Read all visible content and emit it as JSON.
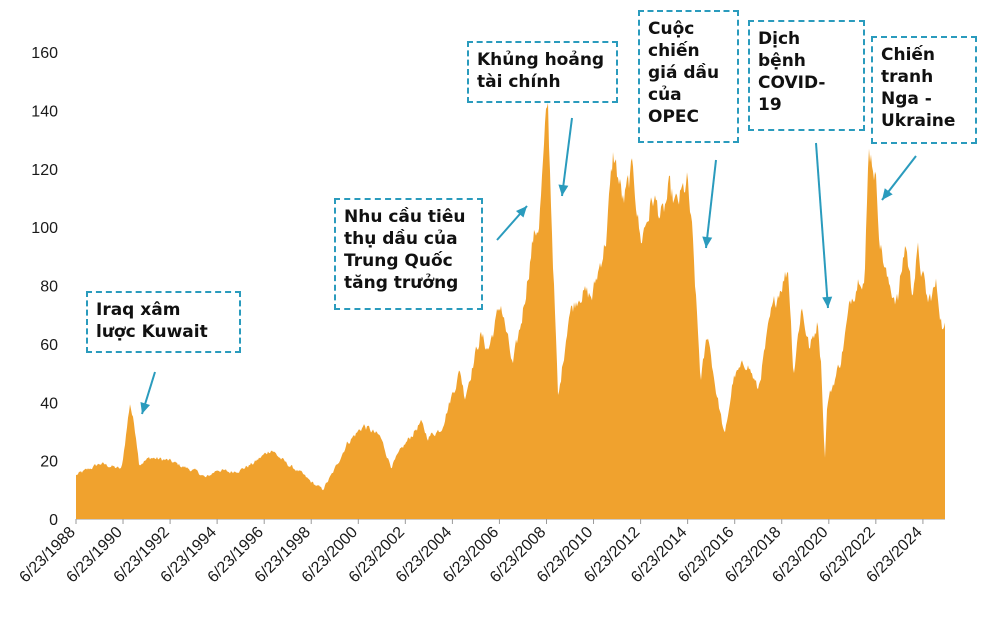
{
  "chart_data": {
    "type": "area",
    "title": "",
    "xlabel": "",
    "ylabel": "",
    "ylim": [
      0,
      160
    ],
    "yticks": [
      0,
      20,
      40,
      60,
      80,
      100,
      120,
      140,
      160
    ],
    "xlim": [
      "1988-06-23",
      "2025-06-01"
    ],
    "xticks": [
      "6/23/1988",
      "6/23/1990",
      "6/23/1992",
      "6/23/1994",
      "6/23/1996",
      "6/23/1998",
      "6/23/2000",
      "6/23/2002",
      "6/23/2004",
      "6/23/2006",
      "6/23/2008",
      "6/23/2010",
      "6/23/2012",
      "6/23/2014",
      "6/23/2016",
      "6/23/2018",
      "6/23/2020",
      "6/23/2022",
      "6/23/2024"
    ],
    "fill_color": "#f0a22e",
    "series": [
      {
        "x": [
          "1988-06-23",
          "1989-01-01",
          "1989-07-01",
          "1990-01-01",
          "1990-06-01",
          "1990-08-15",
          "1990-10-10",
          "1991-01-15",
          "1991-03-01",
          "1991-09-01",
          "1992-06-01",
          "1993-01-01",
          "1993-09-01",
          "1994-01-01",
          "1994-07-01",
          "1995-01-01",
          "1995-07-01",
          "1996-01-01",
          "1996-10-15",
          "1997-01-01",
          "1997-06-01",
          "1998-01-01",
          "1998-06-01",
          "1998-12-15",
          "1999-06-01",
          "2000-01-01",
          "2000-09-15",
          "2001-06-01",
          "2001-11-15",
          "2002-06-01",
          "2003-02-15",
          "2003-06-01",
          "2004-01-01",
          "2004-10-20",
          "2005-01-01",
          "2005-08-30",
          "2006-01-01",
          "2006-07-15",
          "2007-01-15",
          "2007-06-01",
          "2007-11-20",
          "2008-03-01",
          "2008-07-11",
          "2008-09-15",
          "2008-12-21",
          "2009-06-01",
          "2009-12-01",
          "2010-06-01",
          "2011-01-01",
          "2011-04-28",
          "2011-10-01",
          "2012-03-01",
          "2012-06-21",
          "2013-01-01",
          "2013-06-01",
          "2013-09-01",
          "2014-01-01",
          "2014-06-20",
          "2014-09-01",
          "2015-01-13",
          "2015-05-01",
          "2015-09-01",
          "2016-01-20",
          "2016-06-01",
          "2017-01-01",
          "2017-06-20",
          "2018-01-01",
          "2018-05-15",
          "2018-10-03",
          "2018-12-24",
          "2019-04-25",
          "2019-09-01",
          "2020-01-06",
          "2020-03-01",
          "2020-04-21",
          "2020-06-01",
          "2021-01-01",
          "2021-06-01",
          "2021-10-25",
          "2022-01-01",
          "2022-03-08",
          "2022-06-08",
          "2022-09-01",
          "2023-01-01",
          "2023-06-01",
          "2023-09-27",
          "2024-01-01",
          "2024-04-05",
          "2024-09-10",
          "2025-01-15",
          "2025-05-01"
        ],
        "y": [
          15,
          17,
          19,
          18,
          17,
          30,
          40,
          28,
          19,
          21,
          20,
          18,
          16,
          14,
          17,
          16,
          17,
          19,
          24,
          22,
          19,
          16,
          13,
          10,
          16,
          26,
          32,
          28,
          18,
          25,
          33,
          28,
          31,
          51,
          42,
          63,
          58,
          74,
          52,
          68,
          95,
          102,
          143,
          100,
          40,
          70,
          78,
          76,
          96,
          125,
          108,
          120,
          95,
          110,
          103,
          112,
          107,
          115,
          97,
          47,
          64,
          45,
          28,
          48,
          54,
          44,
          69,
          79,
          86,
          50,
          73,
          58,
          68,
          52,
          20,
          40,
          55,
          75,
          85,
          82,
          128,
          120,
          95,
          80,
          75,
          95,
          78,
          91,
          74,
          80,
          65
        ]
      }
    ],
    "annotations": [
      {
        "text": [
          "Iraq xâm",
          "lược Kuwait"
        ]
      },
      {
        "text": [
          "Nhu cầu tiêu",
          "thụ dầu của",
          "Trung Quốc",
          "tăng trưởng"
        ]
      },
      {
        "text": [
          "Khủng hoảng",
          "tài chính"
        ]
      },
      {
        "text": [
          "Cuộc",
          "chiến",
          "giá dầu",
          "của",
          "OPEC"
        ]
      },
      {
        "text": [
          "Dịch",
          "bệnh",
          "COVID-",
          "19"
        ]
      },
      {
        "text": [
          "Chiến",
          "tranh",
          "Nga -",
          "Ukraine"
        ]
      }
    ],
    "arrow_color": "#2a9bbd"
  }
}
